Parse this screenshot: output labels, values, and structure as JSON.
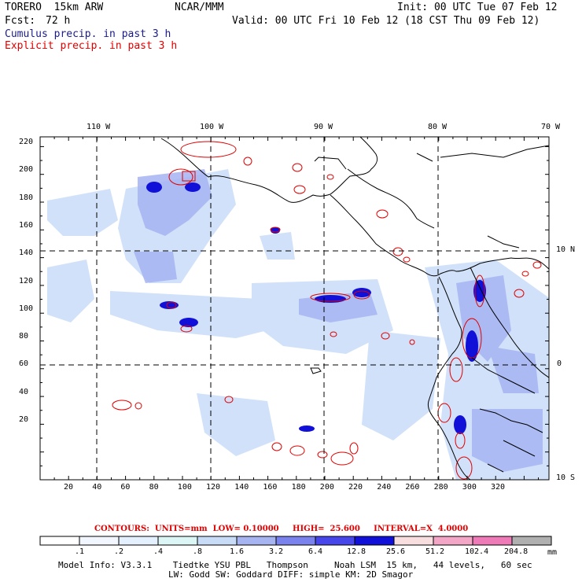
{
  "header": {
    "model": "TORERO  15km ARW",
    "org": "NCAR/MMM",
    "init": "Init: 00 UTC Tue 07 Feb 12",
    "fcst_label": "Fcst:",
    "fcst_value": "72 h",
    "valid": "Valid: 00 UTC Fri 10 Feb 12 (18 CST Thu 09 Feb 12)"
  },
  "legend_titles": {
    "cumulus": "Cumulus precip. in past 3 h",
    "explicit": "Explicit precip. in past 3 h"
  },
  "axes": {
    "lon_labels": [
      "110 W",
      "100 W",
      "90 W",
      "80 W",
      "70 W"
    ],
    "lat_labels": [
      "10 N",
      "0",
      "10 S"
    ],
    "x_ticks": [
      "20",
      "40",
      "60",
      "80",
      "100",
      "120",
      "140",
      "160",
      "180",
      "200",
      "220",
      "240",
      "260",
      "280",
      "300",
      "320"
    ],
    "y_ticks": [
      "220",
      "200",
      "180",
      "160",
      "140",
      "120",
      "100",
      "80",
      "60",
      "40",
      "20"
    ]
  },
  "contours": {
    "text": "CONTOURS:  UNITS=mm  LOW= 0.10000     HIGH=  25.600     INTERVAL=X  4.0000"
  },
  "colorbar": {
    "labels": [
      ".1",
      ".2",
      ".4",
      ".8",
      "1.6",
      "3.2",
      "6.4",
      "12.8",
      "25.6",
      "51.2",
      "102.4",
      "204.8"
    ],
    "units": "mm",
    "colors": [
      "#ffffff",
      "#f2f6ff",
      "#e5f0ff",
      "#dcf5f5",
      "#c8dcf8",
      "#a6b4f2",
      "#7a82ee",
      "#4646ea",
      "#1010d8",
      "#f8dede",
      "#f4a6c6",
      "#ef7ab8",
      "#b0b0b0",
      "#404040",
      "#d8a8f0"
    ]
  },
  "footer": {
    "line1": "Model Info: V3.3.1    Tiedtke YSU PBL   Thompson     Noah LSM  15 km,   44 levels,   60 sec",
    "line2": "LW: Godd SW: Goddard DIFF: simple KM: 2D Smagor"
  }
}
